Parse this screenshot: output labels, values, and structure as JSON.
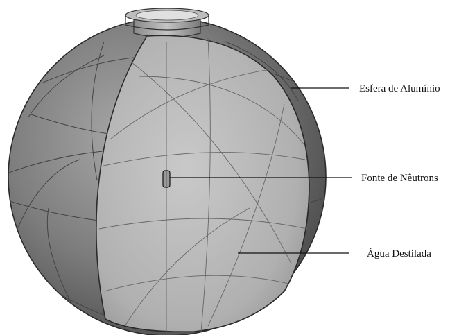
{
  "labels": {
    "sphere": "Esfera de Alumínio",
    "source": "Fonte de Nêutrons",
    "water": "Água Destilada"
  },
  "colors": {
    "shell": "#6f6f6f",
    "shell_light": "#9a9a9a",
    "water": "#b9b9b9",
    "edge": "#2b2b2b",
    "grid": "#5a5a5a"
  }
}
